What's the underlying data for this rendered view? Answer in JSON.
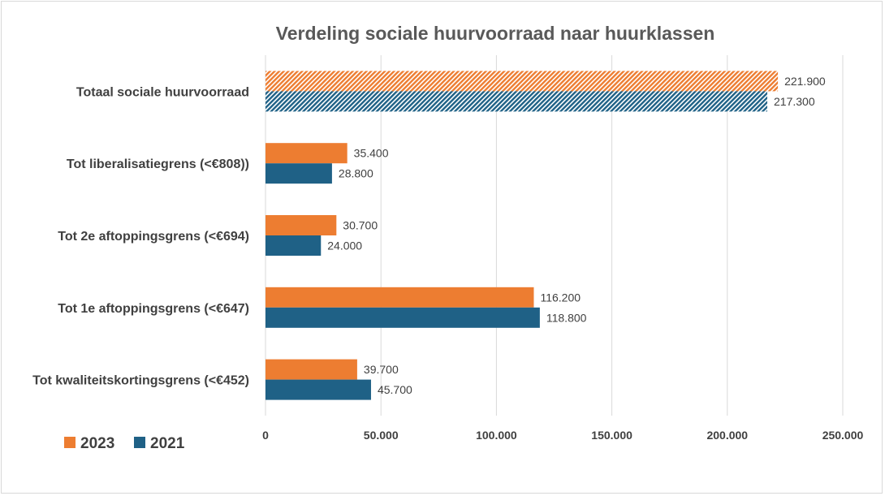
{
  "chart_data": {
    "type": "bar",
    "orientation": "horizontal",
    "title": "Verdeling sociale huurvoorraad naar huurklassen",
    "categories": [
      "Totaal sociale huurvoorraad",
      "Tot liberalisatiegrens (<€808))",
      "Tot 2e aftoppingsgrens (<€694)",
      "Tot 1e aftoppingsgrens (<€647)",
      "Tot kwaliteitskortingsgrens (<€452)"
    ],
    "series": [
      {
        "name": "2023",
        "color": "#ED7D31",
        "values": [
          221900,
          35400,
          30700,
          116200,
          39700
        ],
        "labels": [
          "221.900",
          "35.400",
          "30.700",
          "116.200",
          "39.700"
        ]
      },
      {
        "name": "2021",
        "color": "#1F6186",
        "values": [
          217300,
          28800,
          24000,
          118800,
          45700
        ],
        "labels": [
          "217.300",
          "28.800",
          "24.000",
          "118.800",
          "45.700"
        ]
      }
    ],
    "hatched_categories": [
      0
    ],
    "xlim": [
      0,
      250000
    ],
    "xticks": [
      0,
      50000,
      100000,
      150000,
      200000,
      250000
    ],
    "xtick_labels": [
      "0",
      "50.000",
      "100.000",
      "150.000",
      "200.000",
      "250.000"
    ],
    "grid": true,
    "legend_position": "bottom-left",
    "xlabel": "",
    "ylabel": ""
  }
}
